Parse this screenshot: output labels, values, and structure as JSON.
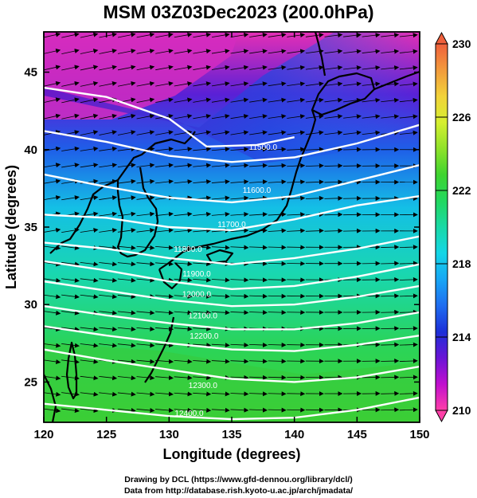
{
  "chart_data": {
    "type": "heatmap",
    "title": "MSM 03Z03Dec2023 (200.0hPa)",
    "xlabel": "Longitude (degrees)",
    "ylabel": "Latitude  (degrees)",
    "xlim": [
      120,
      150
    ],
    "ylim": [
      22.4,
      47.6
    ],
    "x_ticks": [
      120,
      125,
      130,
      135,
      140,
      145,
      150
    ],
    "y_ticks": [
      25,
      30,
      35,
      40,
      45
    ],
    "colorbar": {
      "range": [
        210,
        230
      ],
      "ticks": [
        210,
        214,
        218,
        222,
        226,
        230
      ],
      "colors": [
        "#ff3fa8",
        "#c10fce",
        "#6a14d6",
        "#1c2fd8",
        "#1f6df0",
        "#17a6f5",
        "#14d6e6",
        "#19d9a6",
        "#22d860",
        "#3fd42f",
        "#8fe22a",
        "#d6ef30",
        "#f2d23a",
        "#f29a3c",
        "#f0603c"
      ]
    },
    "contour_lines": [
      {
        "label": "11800.0",
        "label_lon": 131.5,
        "label_lat": 33.4
      },
      {
        "label": "11900.0",
        "label_lon": 132.2,
        "label_lat": 31.8
      },
      {
        "label": "12000.0",
        "label_lon": 132.2,
        "label_lat": 30.5
      },
      {
        "label": "12100.0",
        "label_lon": 132.7,
        "label_lat": 29.1
      },
      {
        "label": "12200.0",
        "label_lon": 132.8,
        "label_lat": 27.8
      },
      {
        "label": "12300.0",
        "label_lon": 132.7,
        "label_lat": 24.6
      },
      {
        "label": "12400.0",
        "label_lon": 131.6,
        "label_lat": 22.8
      },
      {
        "label": "11700.0",
        "label_lon": 135.0,
        "label_lat": 35.0
      },
      {
        "label": "11600.0",
        "label_lon": 137.0,
        "label_lat": 37.2
      },
      {
        "label": "11500.0",
        "label_lon": 137.5,
        "label_lat": 40.0
      }
    ],
    "contour_points": [
      [
        [
          120,
          34.0
        ],
        [
          125,
          33.6
        ],
        [
          130,
          33.0
        ],
        [
          135,
          32.6
        ],
        [
          140,
          33.0
        ],
        [
          145,
          33.6
        ],
        [
          150,
          34.4
        ]
      ],
      [
        [
          120,
          32.8
        ],
        [
          125,
          32.2
        ],
        [
          130,
          31.5
        ],
        [
          135,
          31.0
        ],
        [
          140,
          31.2
        ],
        [
          145,
          31.8
        ],
        [
          150,
          32.6
        ]
      ],
      [
        [
          120,
          31.5
        ],
        [
          125,
          30.9
        ],
        [
          130,
          30.3
        ],
        [
          135,
          29.9
        ],
        [
          140,
          30.0
        ],
        [
          145,
          30.5
        ],
        [
          150,
          31.2
        ]
      ],
      [
        [
          120,
          29.9
        ],
        [
          125,
          29.3
        ],
        [
          130,
          28.8
        ],
        [
          135,
          28.4
        ],
        [
          140,
          28.4
        ],
        [
          145,
          28.8
        ],
        [
          150,
          29.5
        ]
      ],
      [
        [
          120,
          28.6
        ],
        [
          125,
          28.0
        ],
        [
          130,
          27.5
        ],
        [
          135,
          27.1
        ],
        [
          140,
          27.0
        ],
        [
          145,
          27.4
        ],
        [
          150,
          28.0
        ]
      ],
      [
        [
          120,
          27.1
        ],
        [
          125,
          26.4
        ],
        [
          130,
          25.8
        ],
        [
          135,
          25.2
        ],
        [
          140,
          25.0
        ],
        [
          145,
          25.3
        ],
        [
          150,
          26.0
        ]
      ],
      [
        [
          120,
          23.6
        ],
        [
          125,
          23.2
        ],
        [
          130,
          22.8
        ],
        [
          135,
          22.6
        ],
        [
          140,
          22.7
        ],
        [
          145,
          23.2
        ],
        [
          150,
          24.0
        ]
      ],
      [
        [
          120,
          35.8
        ],
        [
          125,
          35.6
        ],
        [
          130,
          35.0
        ],
        [
          135,
          34.8
        ],
        [
          140,
          35.5
        ],
        [
          145,
          36.4
        ],
        [
          150,
          37.0
        ]
      ],
      [
        [
          120,
          38.4
        ],
        [
          125,
          37.6
        ],
        [
          130,
          36.9
        ],
        [
          135,
          36.6
        ],
        [
          140,
          37.0
        ],
        [
          145,
          38.0
        ],
        [
          150,
          39.0
        ]
      ],
      [
        [
          120,
          41.2
        ],
        [
          125,
          40.5
        ],
        [
          130,
          39.6
        ],
        [
          135,
          39.2
        ],
        [
          140,
          39.5
        ],
        [
          145,
          40.4
        ],
        [
          150,
          41.6
        ]
      ],
      [
        [
          120,
          44.0
        ],
        [
          125,
          43.4
        ],
        [
          130,
          42.0
        ],
        [
          133,
          40.2
        ],
        [
          137,
          40.3
        ],
        [
          140,
          40.8
        ]
      ]
    ],
    "wind_vector_direction": "west-to-east"
  },
  "credits": {
    "line1": "Drawing by DCL (https://www.gfd-dennou.org/library/dcl/)",
    "line2": "Data from http://database.rish.kyoto-u.ac.jp/arch/jmadata/"
  }
}
